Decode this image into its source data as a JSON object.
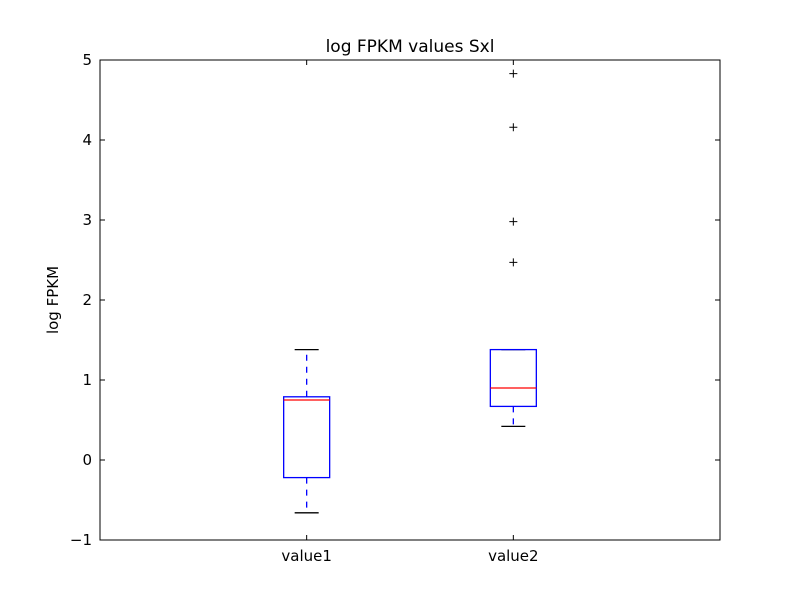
{
  "chart_data": {
    "type": "box",
    "title": "log FPKM values Sxl",
    "xlabel": "",
    "ylabel": "log FPKM",
    "ylim": [
      -1,
      5
    ],
    "yticks": [
      "−1",
      "0",
      "1",
      "2",
      "3",
      "4",
      "5"
    ],
    "categories": [
      "value1",
      "value2"
    ],
    "boxes": [
      {
        "name": "value1",
        "whisker_low": -0.66,
        "q1": -0.22,
        "median": 0.75,
        "q3": 0.79,
        "whisker_high": 1.38,
        "outliers": []
      },
      {
        "name": "value2",
        "whisker_low": 0.42,
        "q1": 0.67,
        "median": 0.9,
        "q3": 1.38,
        "whisker_high": 1.38,
        "outliers": [
          2.47,
          2.98,
          4.16,
          4.83
        ]
      }
    ],
    "colors": {
      "box": "#0000ff",
      "median": "#ff0000",
      "whisker": "#0000ff",
      "cap": "#000000",
      "flier": "#000000"
    },
    "grid": false
  }
}
